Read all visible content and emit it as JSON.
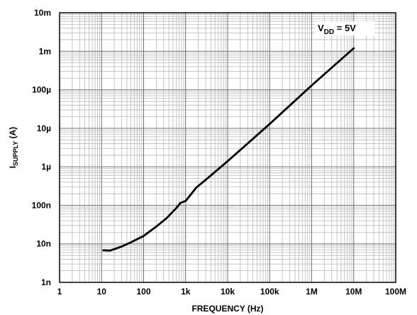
{
  "chart_data": {
    "type": "line",
    "x_scale": "log",
    "y_scale": "log",
    "xlim": [
      1,
      100000000
    ],
    "ylim": [
      1e-09,
      0.01
    ],
    "xlabel": "FREQUENCY (Hz)",
    "ylabel": {
      "main": "I",
      "sub": "SUPPLY",
      "suffix": " (A)"
    },
    "x_ticks": [
      {
        "value": 1,
        "label": "1"
      },
      {
        "value": 10,
        "label": "10"
      },
      {
        "value": 100,
        "label": "100"
      },
      {
        "value": 1000,
        "label": "1k"
      },
      {
        "value": 10000,
        "label": "10k"
      },
      {
        "value": 100000,
        "label": "100k"
      },
      {
        "value": 1000000,
        "label": "1M"
      },
      {
        "value": 10000000,
        "label": "10M"
      },
      {
        "value": 100000000,
        "label": "100M"
      }
    ],
    "y_ticks": [
      {
        "value": 1e-09,
        "label": "1n"
      },
      {
        "value": 1e-08,
        "label": "10n"
      },
      {
        "value": 1e-07,
        "label": "100n"
      },
      {
        "value": 1e-06,
        "label": "1µ"
      },
      {
        "value": 1e-05,
        "label": "10µ"
      },
      {
        "value": 0.0001,
        "label": "100µ"
      },
      {
        "value": 0.001,
        "label": "1m"
      },
      {
        "value": 0.01,
        "label": "10m"
      }
    ],
    "grid": true,
    "annotation": {
      "main": "V",
      "sub": "DD",
      "suffix": " = 5V",
      "position": "top-right"
    },
    "series": [
      {
        "color": "#000000",
        "x": [
          11,
          16,
          30,
          50,
          100,
          200,
          350,
          600,
          750,
          1000,
          1800,
          3000,
          10000,
          100000,
          1000000,
          10000000
        ],
        "y": [
          6.8e-09,
          6.7e-09,
          8.5e-09,
          1.1e-08,
          1.6e-08,
          2.8e-08,
          4.6e-08,
          8.5e-08,
          1.15e-07,
          1.3e-07,
          2.9e-07,
          4.6e-07,
          1.4e-06,
          1.3e-05,
          0.00013,
          0.0012
        ]
      }
    ]
  }
}
